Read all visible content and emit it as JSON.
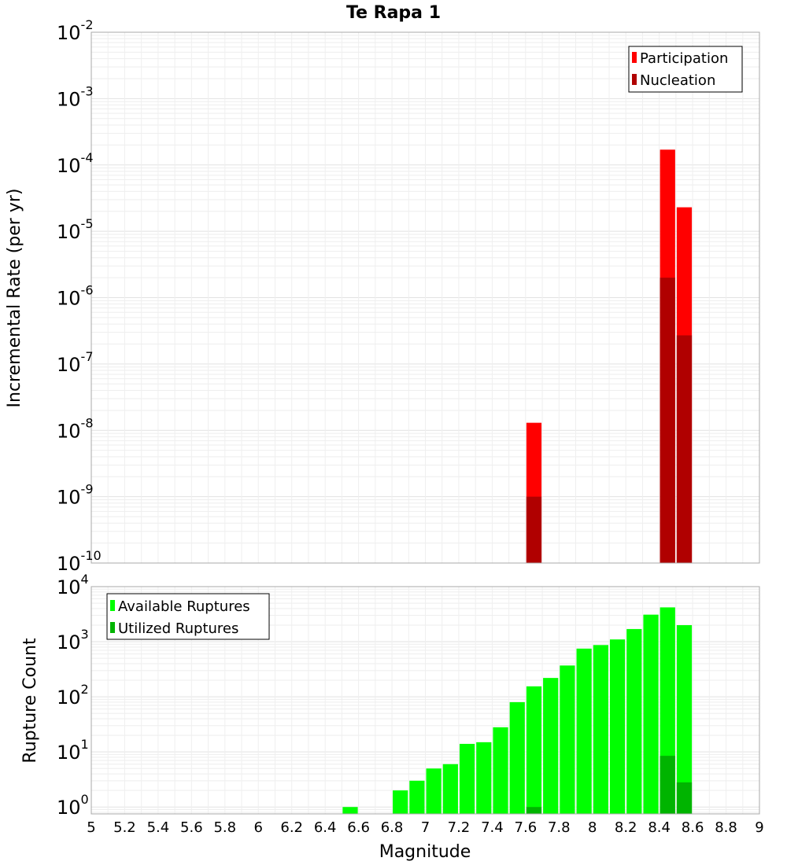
{
  "chart_data": [
    {
      "type": "bar",
      "title": "Te Rapa 1",
      "xlabel": "",
      "ylabel": "Incremental Rate (per yr)",
      "yscale": "log",
      "ylim": [
        1e-10,
        0.01
      ],
      "xlim": [
        5,
        9
      ],
      "legend_position": "top-right",
      "bin_width": 0.1,
      "series": [
        {
          "name": "Participation",
          "color": "#ff0000",
          "points": [
            {
              "x": 7.65,
              "y": 1.3e-08
            },
            {
              "x": 8.45,
              "y": 0.00017
            },
            {
              "x": 8.55,
              "y": 2.3e-05
            }
          ]
        },
        {
          "name": "Nucleation",
          "color": "#b00000",
          "points": [
            {
              "x": 7.65,
              "y": 1e-09
            },
            {
              "x": 8.45,
              "y": 2e-06
            },
            {
              "x": 8.55,
              "y": 2.7e-07
            }
          ]
        }
      ]
    },
    {
      "type": "bar",
      "title": "",
      "xlabel": "Magnitude",
      "ylabel": "Rupture Count",
      "yscale": "log",
      "ylim": [
        0.75,
        10000
      ],
      "xlim": [
        5,
        9
      ],
      "legend_position": "top-left",
      "bin_width": 0.1,
      "x_ticks": [
        "5",
        "5.2",
        "5.4",
        "5.6",
        "5.8",
        "6",
        "6.2",
        "6.4",
        "6.6",
        "6.8",
        "7",
        "7.2",
        "7.4",
        "7.6",
        "7.8",
        "8",
        "8.2",
        "8.4",
        "8.6",
        "8.8",
        "9"
      ],
      "series": [
        {
          "name": "Available Ruptures",
          "color": "#00ff00",
          "points": [
            {
              "x": 6.55,
              "y": 1
            },
            {
              "x": 6.85,
              "y": 2
            },
            {
              "x": 6.95,
              "y": 3
            },
            {
              "x": 7.05,
              "y": 5
            },
            {
              "x": 7.15,
              "y": 6
            },
            {
              "x": 7.25,
              "y": 14
            },
            {
              "x": 7.35,
              "y": 15
            },
            {
              "x": 7.45,
              "y": 28
            },
            {
              "x": 7.55,
              "y": 80
            },
            {
              "x": 7.65,
              "y": 155
            },
            {
              "x": 7.75,
              "y": 220
            },
            {
              "x": 7.85,
              "y": 370
            },
            {
              "x": 7.95,
              "y": 750
            },
            {
              "x": 8.05,
              "y": 870
            },
            {
              "x": 8.15,
              "y": 1100
            },
            {
              "x": 8.25,
              "y": 1700
            },
            {
              "x": 8.35,
              "y": 3100
            },
            {
              "x": 8.45,
              "y": 4200
            },
            {
              "x": 8.55,
              "y": 2000
            }
          ]
        },
        {
          "name": "Utilized Ruptures",
          "color": "#00b400",
          "points": [
            {
              "x": 7.65,
              "y": 1
            },
            {
              "x": 8.45,
              "y": 8.5
            },
            {
              "x": 8.55,
              "y": 2.8
            }
          ]
        }
      ]
    }
  ],
  "top_y_ticks": [
    {
      "base": "10",
      "exp": "-2"
    },
    {
      "base": "10",
      "exp": "-3"
    },
    {
      "base": "10",
      "exp": "-4"
    },
    {
      "base": "10",
      "exp": "-5"
    },
    {
      "base": "10",
      "exp": "-6"
    },
    {
      "base": "10",
      "exp": "-7"
    },
    {
      "base": "10",
      "exp": "-8"
    },
    {
      "base": "10",
      "exp": "-9"
    },
    {
      "base": "10",
      "exp": "-10"
    }
  ],
  "bottom_y_ticks": [
    {
      "base": "10",
      "exp": "4"
    },
    {
      "base": "10",
      "exp": "3"
    },
    {
      "base": "10",
      "exp": "2"
    },
    {
      "base": "10",
      "exp": "1"
    },
    {
      "base": "10",
      "exp": "0"
    }
  ]
}
